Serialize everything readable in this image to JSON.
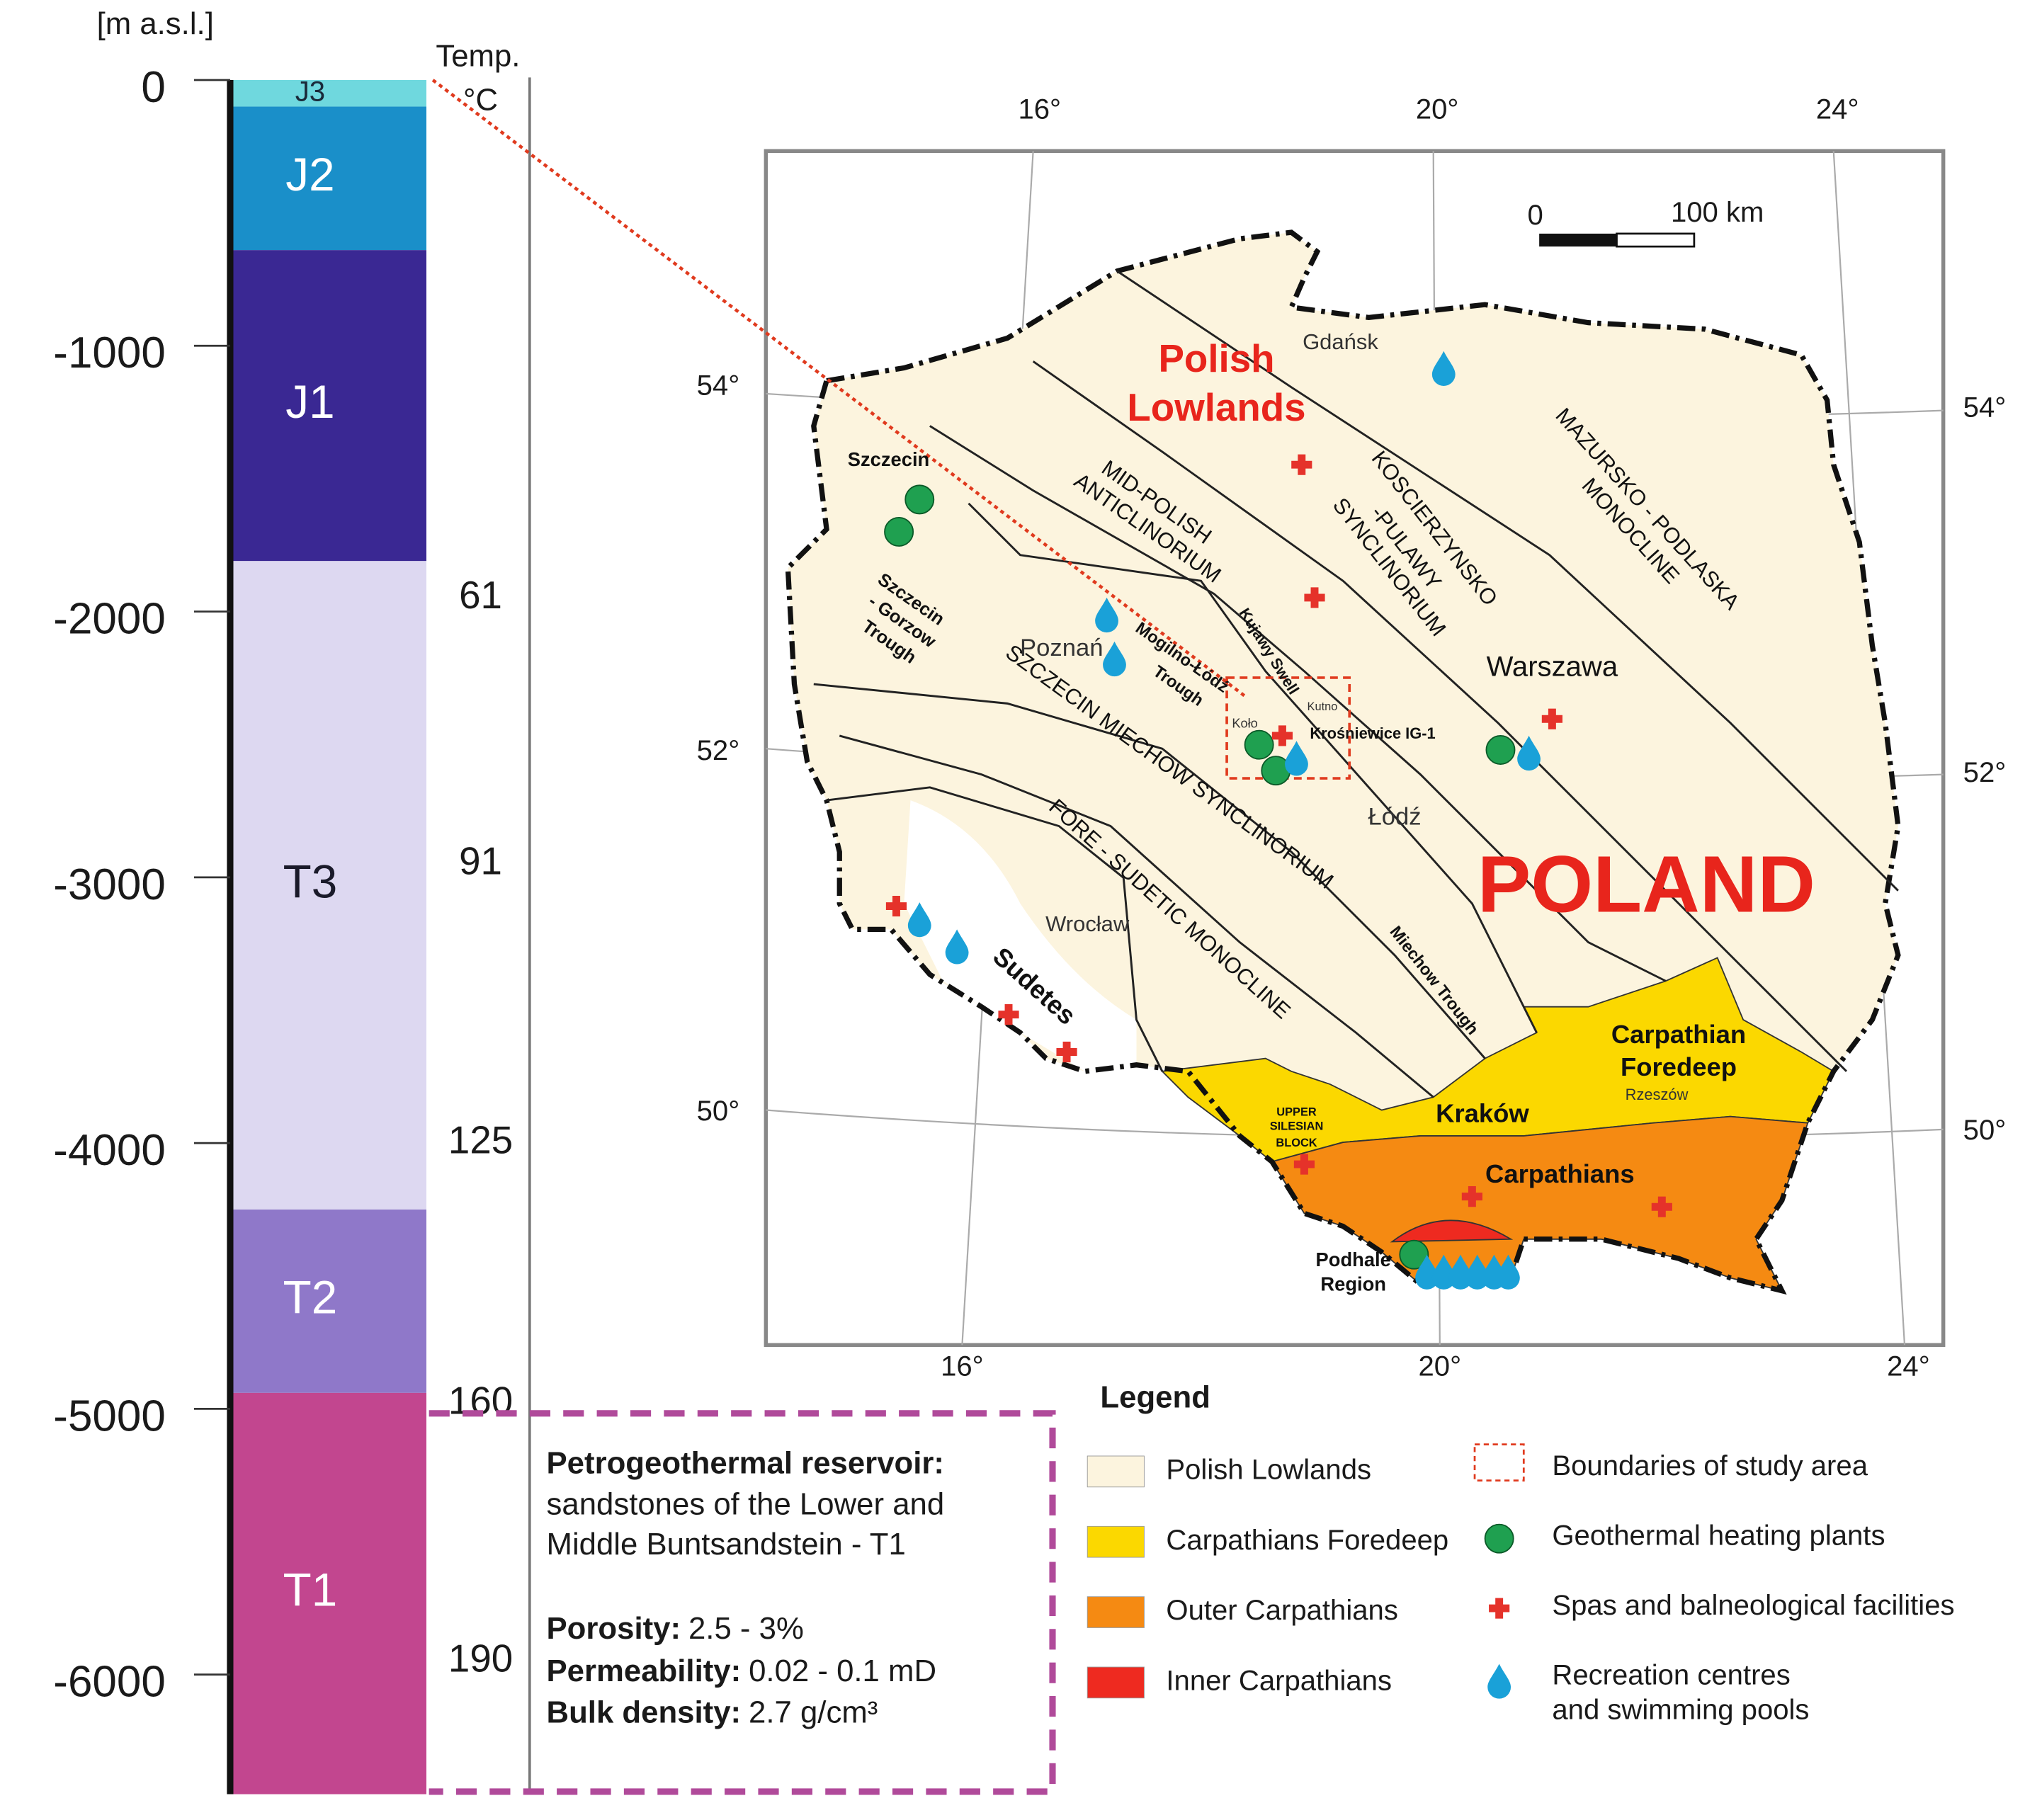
{
  "column": {
    "axis_label": "[m a.s.l.]",
    "temp_label": "Temp.",
    "temp_unit": "°C",
    "ylim": [
      0,
      -6450
    ],
    "yticks": [
      0,
      -1000,
      -2000,
      -3000,
      -4000,
      -5000,
      -6000
    ],
    "layers": [
      {
        "name": "J3",
        "top": 0,
        "bottom": -100,
        "color": "#6fd8de",
        "text_color": "#1a2a3a"
      },
      {
        "name": "J2",
        "top": -100,
        "bottom": -640,
        "color": "#1a8fc9",
        "text_color": "#ffffff"
      },
      {
        "name": "J1",
        "top": -640,
        "bottom": -1810,
        "color": "#3a2893",
        "text_color": "#ffffff"
      },
      {
        "name": "T3",
        "top": -1810,
        "bottom": -4250,
        "color": "#ddd8f1",
        "text_color": "#1a1a2a"
      },
      {
        "name": "T2",
        "top": -4250,
        "bottom": -4940,
        "color": "#8f78c9",
        "text_color": "#ffffff"
      },
      {
        "name": "T1",
        "top": -4940,
        "bottom": -6450,
        "color": "#c2468f",
        "text_color": "#ffffff"
      }
    ],
    "temperatures": [
      {
        "value": 61,
        "depth": -1950
      },
      {
        "value": 91,
        "depth": -2950
      },
      {
        "value": 125,
        "depth": -4000
      },
      {
        "value": 160,
        "depth": -4980
      },
      {
        "value": 190,
        "depth": -5950
      }
    ]
  },
  "reservoir": {
    "title": "Petrogeothermal reservoir:",
    "lines": [
      "sandstones of the Lower and",
      "Middle Buntsandstein - T1"
    ],
    "properties": [
      {
        "name": "Porosity:",
        "value": "2.5 - 3%"
      },
      {
        "name": "Permeability:",
        "value": "0.02 - 0.1 mD"
      },
      {
        "name": "Bulk density:",
        "value": "2.7 g/cm³"
      }
    ]
  },
  "map": {
    "longitudes": [
      "16°",
      "20°",
      "24°"
    ],
    "latitudes": [
      "54°",
      "52°",
      "50°"
    ],
    "scale": {
      "start": "0",
      "end": "100 km"
    },
    "labels": [
      "Polish",
      "Lowlands",
      "Gdańsk",
      "Szczecin",
      "MAZURSKO - PODLASKA",
      "MONOCLINE",
      "KOSCIERZYNSKO",
      "-PULAWY",
      "SYNCLINORIUM",
      "MID-POLISH",
      "ANTICLINORIUM",
      "Kujawy Swell",
      "Mogilno-Łódź",
      "Trough",
      "Szczecin",
      "- Gorzow",
      "Trough",
      "Poznań",
      "SZCZECIN MIECHOW SYNCLINORIUM",
      "FORE - SUDETIC MONOCLINE",
      "Miechow Trough",
      "Warszawa",
      "Koło",
      "Kutno",
      "Krośniewice IG-1",
      "Łódź",
      "POLAND",
      "Wrocław",
      "Sudetes",
      "Carpathian",
      "Foredeep",
      "Rzeszów",
      "Kraków",
      "UPPER",
      "SILESIAN",
      "BLOCK",
      "Carpathians",
      "Podhale",
      "Region"
    ]
  },
  "legend": {
    "title": "Legend",
    "areas": [
      {
        "label": "Polish Lowlands",
        "color": "#fcf4de"
      },
      {
        "label": "Carpathians Foredeep",
        "color": "#fbd800"
      },
      {
        "label": "Outer Carpathians",
        "color": "#f58a12"
      },
      {
        "label": "Inner Carpathians",
        "color": "#ee2a20"
      }
    ],
    "symbols": [
      "Boundaries of study area",
      "Geothermal heating plants",
      "Spas and balneological facilities",
      "Recreation centres",
      "and swimming pools"
    ]
  }
}
